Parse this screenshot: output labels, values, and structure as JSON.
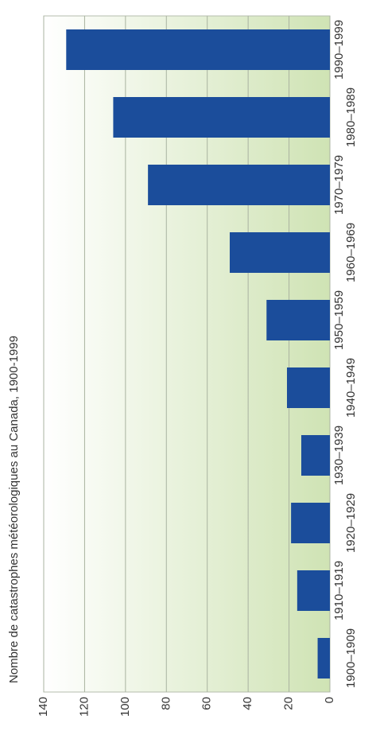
{
  "chart_data": {
    "type": "bar",
    "title": "Nombre de catastrophes météorologiques au Canada, 1900-1999",
    "categories": [
      "1900–1909",
      "1910–1919",
      "1920–1929",
      "1930–1939",
      "1940–1949",
      "1950–1959",
      "1960–1969",
      "1970–1979",
      "1980–1989",
      "1990–1999"
    ],
    "values": [
      6,
      16,
      19,
      14,
      21,
      31,
      49,
      89,
      106,
      129
    ],
    "color": "#1b4d9b",
    "ylim": [
      0,
      140
    ],
    "yticks": [
      0,
      20,
      40,
      60,
      80,
      100,
      120,
      140
    ],
    "grid": true
  }
}
